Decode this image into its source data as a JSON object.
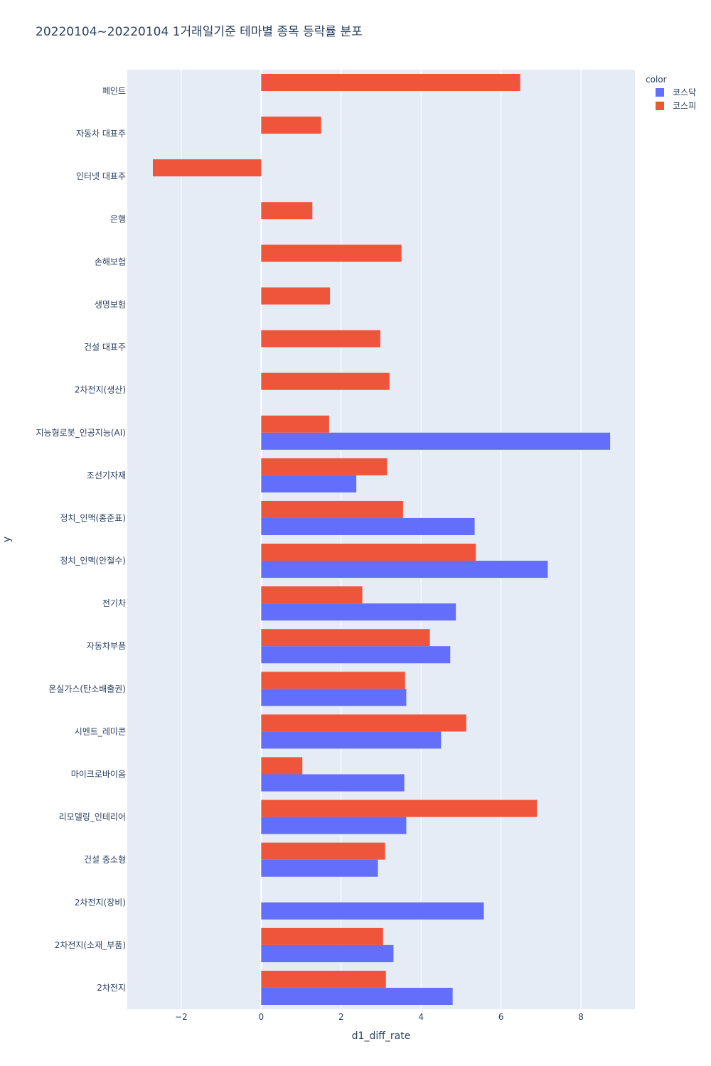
{
  "chart_data": {
    "type": "bar",
    "orientation": "horizontal",
    "barmode": "group",
    "title": "20220104~20220104 1거래일기준 테마별 종목 등락률 분포",
    "xlabel": "d1_diff_rate",
    "ylabel": "y",
    "xlim": [
      -3.35,
      9.35
    ],
    "x_ticks": [
      -2,
      0,
      2,
      4,
      6,
      8
    ],
    "x_tick_labels": [
      "−2",
      "0",
      "2",
      "4",
      "6",
      "8"
    ],
    "grid": true,
    "legend": {
      "title": "color",
      "position": "top-right"
    },
    "categories": [
      "페인트",
      "자동차 대표주",
      "인터넷 대표주",
      "은행",
      "손해보험",
      "생명보험",
      "건설 대표주",
      "2차전지(생산)",
      "지능형로봇_인공지능(AI)",
      "조선기자재",
      "정치_인맥(홍준표)",
      "정치_인맥(안철수)",
      "전기차",
      "자동차부품",
      "온실가스(탄소배출권)",
      "시멘트_레미콘",
      "마이크로바이옴",
      "리모델링_인테리어",
      "건설 중소형",
      "2차전지(장비)",
      "2차전지(소재_부품)",
      "2차전지"
    ],
    "series": [
      {
        "name": "코스닥",
        "color": "#636efa",
        "values": [
          null,
          null,
          null,
          null,
          null,
          null,
          null,
          null,
          8.73,
          2.38,
          5.34,
          7.17,
          4.87,
          4.73,
          3.63,
          4.5,
          3.58,
          3.63,
          2.92,
          5.57,
          3.31,
          4.79
        ]
      },
      {
        "name": "코스피",
        "color": "#ef553b",
        "values": [
          6.48,
          1.5,
          -2.71,
          1.28,
          3.51,
          1.72,
          2.98,
          3.21,
          1.7,
          3.15,
          3.55,
          5.37,
          2.53,
          4.22,
          3.6,
          5.13,
          1.03,
          6.9,
          3.1,
          null,
          3.05,
          3.12
        ]
      }
    ]
  }
}
